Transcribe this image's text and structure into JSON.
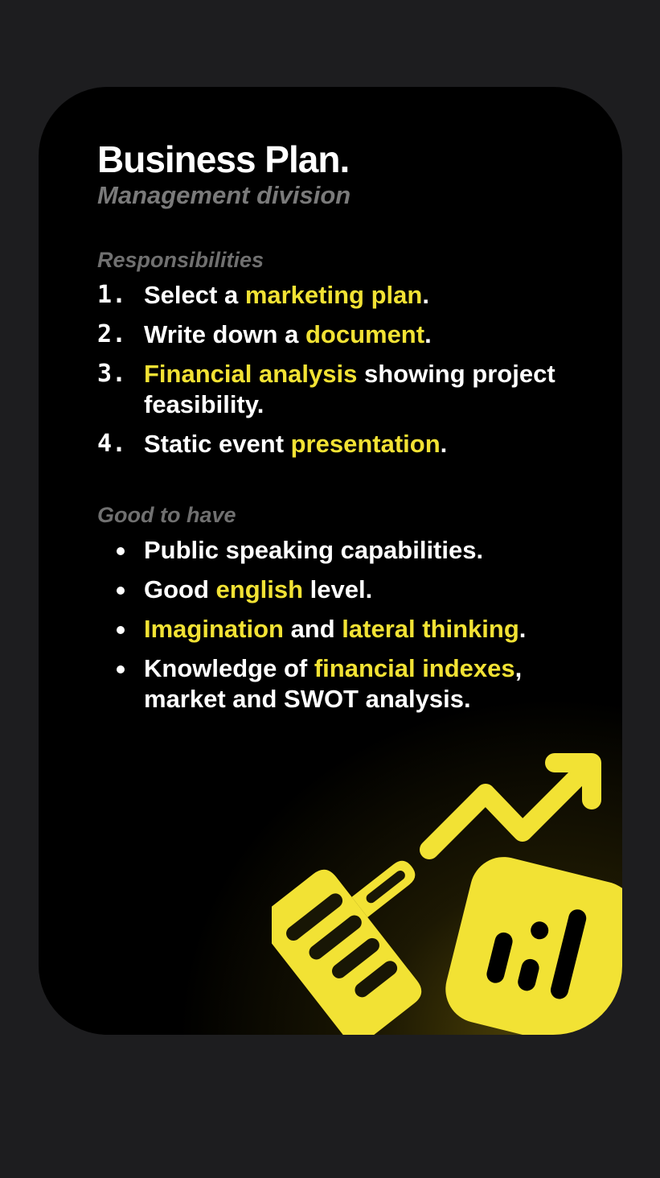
{
  "card": {
    "title": "Business Plan.",
    "subtitle": "Management division",
    "accent_color": "#f2e234"
  },
  "responsibilities": {
    "label": "Responsibilities",
    "items": [
      {
        "num": "1.",
        "pre": "Select a ",
        "hl": "marketing plan",
        "post": "."
      },
      {
        "num": "2.",
        "pre": "Write down a ",
        "hl": "document",
        "post": "."
      },
      {
        "num": "3.",
        "pre": "",
        "hl": "Financial analysis",
        "post": " showing project feasibility."
      },
      {
        "num": "4.",
        "pre": "Static event ",
        "hl": "presentation",
        "post": "."
      }
    ]
  },
  "good_to_have": {
    "label": "Good to have",
    "items": [
      {
        "a": "Public speaking capabilities.",
        "b": "",
        "c": "",
        "d": "",
        "e": ""
      },
      {
        "a": "Good ",
        "b": "english",
        "c": " level.",
        "d": "",
        "e": ""
      },
      {
        "a": "",
        "b": "Imagination",
        "c": " and ",
        "d": "lateral thinking",
        "e": "."
      },
      {
        "a": "Knowledge of ",
        "b": "financial indexes",
        "c": ", market and SWOT analysis.",
        "d": "",
        "e": ""
      }
    ]
  },
  "illustration": {
    "icons": [
      "trend-up-arrow-icon",
      "handshake-icon",
      "bar-chart-icon"
    ]
  }
}
